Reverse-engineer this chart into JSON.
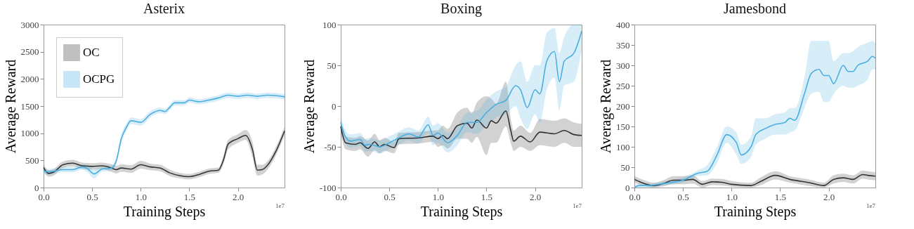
{
  "chart_data": [
    {
      "type": "line",
      "title": "Asterix",
      "xlabel": "Training Steps",
      "ylabel": "Average Reward",
      "annotations": [
        "1e7"
      ],
      "legend": "top left",
      "xlim": [
        0,
        2.48
      ],
      "xticks": [
        {
          "value": 0,
          "label": "0.0"
        },
        {
          "value": 0.5,
          "label": "0.5"
        },
        {
          "value": 1,
          "label": "1.0"
        },
        {
          "value": 1.5,
          "label": "1.5"
        },
        {
          "value": 2,
          "label": "2.0"
        }
      ],
      "ylim": [
        0,
        3000
      ],
      "yticks": [
        0,
        500,
        1000,
        1500,
        2000,
        2500,
        3000
      ],
      "series": [
        {
          "name": "OC",
          "color": "#333333",
          "x": [
            0,
            0.05,
            0.1,
            0.2,
            0.3,
            0.4,
            0.5,
            0.6,
            0.7,
            0.75,
            0.8,
            0.9,
            1.0,
            1.1,
            1.2,
            1.3,
            1.4,
            1.5,
            1.6,
            1.7,
            1.8,
            1.85,
            1.9,
            2.0,
            2.08,
            2.15,
            2.2,
            2.25,
            2.3,
            2.4,
            2.48
          ],
          "values": [
            370,
            260,
            280,
            420,
            450,
            400,
            390,
            400,
            360,
            330,
            360,
            340,
            420,
            380,
            360,
            270,
            220,
            200,
            240,
            300,
            320,
            500,
            800,
            900,
            960,
            700,
            320,
            330,
            400,
            700,
            1040
          ],
          "lower": [
            310,
            200,
            220,
            360,
            390,
            340,
            330,
            340,
            290,
            260,
            290,
            270,
            350,
            320,
            300,
            210,
            170,
            150,
            190,
            250,
            270,
            420,
            700,
            820,
            880,
            560,
            220,
            240,
            320,
            620,
            960
          ],
          "upper": [
            430,
            320,
            340,
            480,
            510,
            460,
            450,
            460,
            430,
            400,
            430,
            410,
            490,
            440,
            420,
            330,
            270,
            250,
            290,
            350,
            370,
            580,
            880,
            980,
            1060,
            840,
            420,
            420,
            480,
            780,
            1120
          ]
        },
        {
          "name": "OCPG",
          "color": "#4aaee0",
          "x": [
            0,
            0.05,
            0.1,
            0.2,
            0.3,
            0.4,
            0.45,
            0.52,
            0.6,
            0.7,
            0.75,
            0.8,
            0.85,
            0.9,
            1.0,
            1.1,
            1.2,
            1.25,
            1.3,
            1.35,
            1.45,
            1.5,
            1.6,
            1.7,
            1.8,
            1.9,
            2.0,
            2.1,
            2.2,
            2.3,
            2.4,
            2.48
          ],
          "values": [
            300,
            290,
            300,
            330,
            330,
            380,
            350,
            250,
            340,
            360,
            500,
            900,
            1100,
            1230,
            1200,
            1350,
            1420,
            1400,
            1480,
            1560,
            1560,
            1610,
            1580,
            1610,
            1650,
            1700,
            1680,
            1700,
            1680,
            1700,
            1690,
            1670
          ],
          "lower": [
            240,
            240,
            250,
            280,
            280,
            330,
            280,
            170,
            290,
            310,
            440,
            820,
            1030,
            1170,
            1140,
            1290,
            1370,
            1350,
            1430,
            1510,
            1510,
            1560,
            1530,
            1560,
            1600,
            1650,
            1630,
            1650,
            1630,
            1650,
            1640,
            1620
          ],
          "upper": [
            360,
            340,
            350,
            380,
            380,
            430,
            420,
            330,
            390,
            410,
            560,
            980,
            1170,
            1290,
            1260,
            1410,
            1470,
            1450,
            1530,
            1610,
            1610,
            1660,
            1630,
            1660,
            1700,
            1750,
            1730,
            1750,
            1730,
            1750,
            1740,
            1720
          ]
        }
      ]
    },
    {
      "type": "line",
      "title": "Boxing",
      "xlabel": "Training Steps",
      "ylabel": "Average Reward",
      "annotations": [
        "1e7"
      ],
      "xlim": [
        0,
        2.48
      ],
      "xticks": [
        {
          "value": 0,
          "label": "0.0"
        },
        {
          "value": 0.5,
          "label": "0.5"
        },
        {
          "value": 1,
          "label": "1.0"
        },
        {
          "value": 1.5,
          "label": "1.5"
        },
        {
          "value": 2,
          "label": "2.0"
        }
      ],
      "ylim": [
        -100,
        100
      ],
      "yticks": [
        -100,
        -50,
        0,
        50,
        100
      ],
      "series": [
        {
          "color": "#333333",
          "x": [
            0,
            0.05,
            0.15,
            0.2,
            0.28,
            0.35,
            0.4,
            0.45,
            0.55,
            0.6,
            0.8,
            0.95,
            1.0,
            1.05,
            1.1,
            1.2,
            1.3,
            1.35,
            1.4,
            1.5,
            1.55,
            1.6,
            1.7,
            1.75,
            1.78,
            1.85,
            1.95,
            2.05,
            2.2,
            2.3,
            2.4,
            2.48
          ],
          "values": [
            -25,
            -45,
            -47,
            -45,
            -52,
            -44,
            -50,
            -47,
            -51,
            -40,
            -39,
            -37,
            -40,
            -36,
            -40,
            -24,
            -21,
            -27,
            -17,
            -27,
            -18,
            -21,
            -6,
            -30,
            -43,
            -37,
            -44,
            -32,
            -34,
            -30,
            -35,
            -36
          ],
          "lower": [
            -33,
            -53,
            -55,
            -53,
            -62,
            -54,
            -58,
            -55,
            -58,
            -47,
            -46,
            -44,
            -50,
            -48,
            -52,
            -40,
            -40,
            -45,
            -38,
            -60,
            -45,
            -45,
            -25,
            -45,
            -55,
            -50,
            -55,
            -48,
            -50,
            -45,
            -50,
            -50
          ],
          "upper": [
            -17,
            -37,
            -39,
            -37,
            -42,
            -34,
            -42,
            -39,
            -44,
            -33,
            -32,
            -30,
            -30,
            -24,
            -28,
            -8,
            -2,
            -9,
            4,
            12,
            9,
            3,
            30,
            -15,
            -30,
            -24,
            -33,
            -16,
            -18,
            -15,
            -20,
            -22
          ]
        },
        {
          "color": "#4aaee0",
          "x": [
            0,
            0.05,
            0.1,
            0.2,
            0.25,
            0.3,
            0.4,
            0.5,
            0.6,
            0.7,
            0.8,
            0.9,
            0.95,
            1.0,
            1.1,
            1.2,
            1.3,
            1.4,
            1.5,
            1.6,
            1.7,
            1.8,
            1.85,
            1.92,
            2.0,
            2.05,
            2.12,
            2.2,
            2.25,
            2.3,
            2.4,
            2.48
          ],
          "values": [
            -20,
            -38,
            -43,
            -41,
            -48,
            -47,
            -50,
            -45,
            -39,
            -34,
            -38,
            -23,
            -36,
            -33,
            -45,
            -36,
            -20,
            -20,
            -8,
            2,
            7,
            25,
            20,
            -2,
            20,
            15,
            55,
            67,
            30,
            55,
            65,
            92
          ],
          "lower": [
            -28,
            -46,
            -51,
            -49,
            -56,
            -55,
            -58,
            -53,
            -47,
            -42,
            -46,
            -33,
            -48,
            -45,
            -57,
            -48,
            -32,
            -34,
            -24,
            -14,
            -10,
            0,
            -15,
            -28,
            -10,
            -20,
            20,
            35,
            -5,
            25,
            30,
            70
          ],
          "upper": [
            -12,
            -30,
            -35,
            -33,
            -40,
            -39,
            -42,
            -37,
            -31,
            -26,
            -30,
            -13,
            -24,
            -21,
            -33,
            -24,
            -8,
            -6,
            8,
            18,
            24,
            50,
            55,
            30,
            50,
            50,
            90,
            96,
            65,
            85,
            100,
            100
          ]
        }
      ]
    },
    {
      "type": "line",
      "title": "Jamesbond",
      "xlabel": "Training Steps",
      "ylabel": "Average Reward",
      "annotations": [
        "1e7"
      ],
      "xlim": [
        0,
        2.48
      ],
      "xticks": [
        {
          "value": 0,
          "label": "0.0"
        },
        {
          "value": 0.5,
          "label": "0.5"
        },
        {
          "value": 1,
          "label": "1.0"
        },
        {
          "value": 1.5,
          "label": "1.5"
        },
        {
          "value": 2,
          "label": "2.0"
        }
      ],
      "ylim": [
        0,
        400
      ],
      "yticks": [
        0,
        50,
        100,
        150,
        200,
        250,
        300,
        350,
        400
      ],
      "series": [
        {
          "color": "#333333",
          "x": [
            0,
            0.1,
            0.2,
            0.3,
            0.4,
            0.5,
            0.6,
            0.7,
            0.8,
            0.9,
            1.0,
            1.2,
            1.3,
            1.45,
            1.6,
            1.8,
            1.95,
            2.05,
            2.15,
            2.25,
            2.35,
            2.4,
            2.48
          ],
          "values": [
            20,
            10,
            5,
            10,
            18,
            18,
            20,
            8,
            14,
            13,
            8,
            5,
            15,
            30,
            20,
            12,
            5,
            20,
            24,
            20,
            32,
            30,
            28
          ],
          "lower": [
            12,
            4,
            0,
            3,
            8,
            8,
            10,
            0,
            6,
            5,
            2,
            0,
            6,
            20,
            12,
            4,
            0,
            10,
            14,
            10,
            22,
            20,
            18
          ],
          "upper": [
            28,
            18,
            12,
            18,
            28,
            28,
            30,
            16,
            22,
            21,
            16,
            12,
            25,
            40,
            28,
            20,
            12,
            30,
            34,
            30,
            42,
            40,
            38
          ]
        },
        {
          "color": "#4aaee0",
          "x": [
            0,
            0.05,
            0.15,
            0.3,
            0.5,
            0.65,
            0.75,
            0.85,
            0.95,
            1.05,
            1.1,
            1.2,
            1.25,
            1.35,
            1.45,
            1.55,
            1.6,
            1.65,
            1.75,
            1.82,
            1.9,
            1.95,
            2.0,
            2.05,
            2.15,
            2.2,
            2.25,
            2.3,
            2.4,
            2.45,
            2.48
          ],
          "values": [
            0,
            5,
            5,
            10,
            18,
            35,
            40,
            80,
            130,
            110,
            80,
            100,
            130,
            145,
            155,
            160,
            170,
            165,
            230,
            280,
            290,
            275,
            275,
            255,
            300,
            285,
            285,
            300,
            310,
            322,
            318
          ],
          "lower": [
            0,
            0,
            0,
            5,
            12,
            28,
            30,
            60,
            110,
            80,
            58,
            75,
            105,
            120,
            130,
            130,
            135,
            140,
            195,
            230,
            235,
            210,
            210,
            230,
            250,
            245,
            245,
            250,
            265,
            290,
            290
          ],
          "upper": [
            5,
            10,
            10,
            15,
            25,
            42,
            55,
            100,
            150,
            135,
            105,
            125,
            170,
            170,
            180,
            185,
            195,
            195,
            270,
            360,
            360,
            360,
            360,
            310,
            330,
            330,
            335,
            345,
            355,
            360,
            355
          ]
        }
      ]
    }
  ]
}
